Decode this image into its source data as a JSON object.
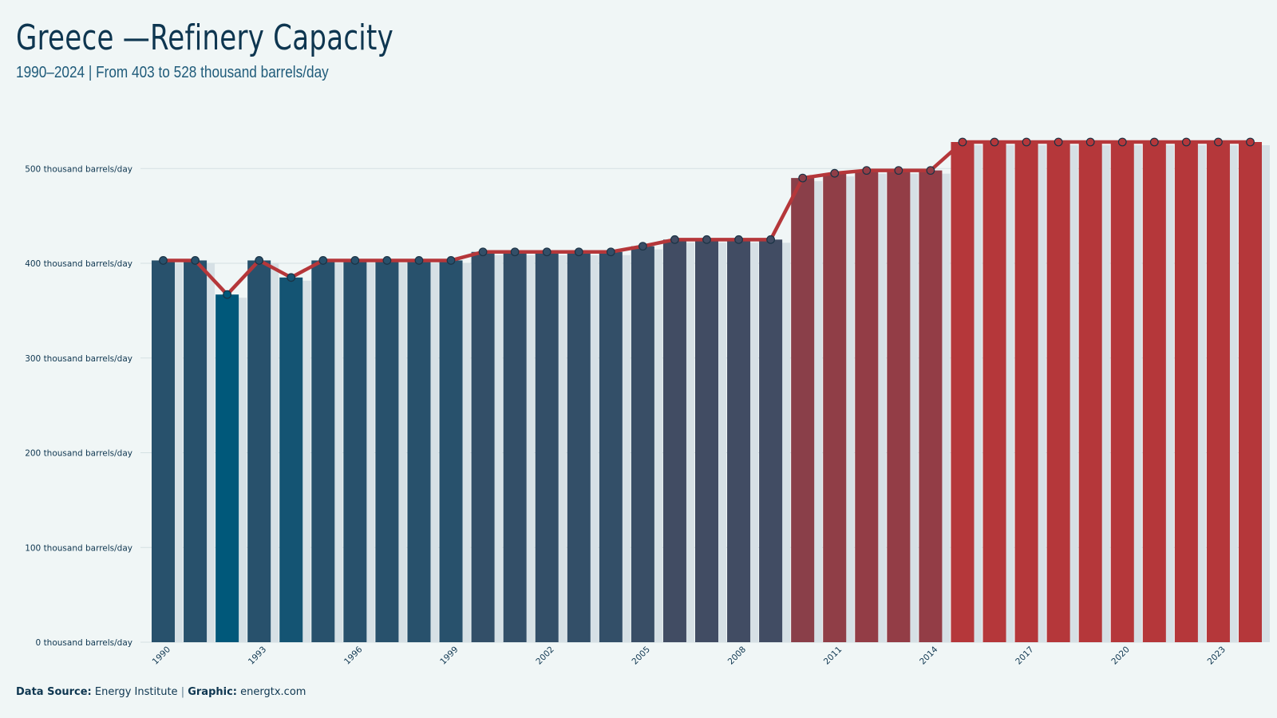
{
  "title": "Greece —Refinery Capacity",
  "subtitle": "1990–2024 | From 403 to 528 thousand barrels/day",
  "footer": {
    "source_label": "Data Source:",
    "source_value": "Energy Institute",
    "separator": "|",
    "graphic_label": "Graphic:",
    "graphic_value": "energtx.com"
  },
  "chart_data": {
    "type": "bar",
    "overlay": "line-with-markers",
    "x": [
      1990,
      1991,
      1992,
      1993,
      1994,
      1995,
      1996,
      1997,
      1998,
      1999,
      2000,
      2001,
      2002,
      2003,
      2004,
      2005,
      2006,
      2007,
      2008,
      2009,
      2010,
      2011,
      2012,
      2013,
      2014,
      2015,
      2016,
      2017,
      2018,
      2019,
      2020,
      2021,
      2022,
      2023,
      2024
    ],
    "values": [
      403,
      403,
      367,
      403,
      385,
      403,
      403,
      403,
      403,
      403,
      412,
      412,
      412,
      412,
      412,
      418,
      425,
      425,
      425,
      425,
      490,
      495,
      498,
      498,
      498,
      528,
      528,
      528,
      528,
      528,
      528,
      528,
      528,
      528,
      528
    ],
    "unit": "thousand barrels/day",
    "xticks": [
      1990,
      1993,
      1996,
      1999,
      2002,
      2005,
      2008,
      2011,
      2014,
      2017,
      2020,
      2023
    ],
    "yticks": [
      0,
      100,
      200,
      300,
      400,
      500
    ],
    "ytick_labels": [
      "0 thousand barrels/day",
      "100 thousand barrels/day",
      "200 thousand barrels/day",
      "300 thousand barrels/day",
      "400 thousand barrels/day",
      "500 thousand barrels/day"
    ],
    "ylim": [
      0,
      560
    ],
    "grid": "horizontal",
    "colors": {
      "line": "#b5373a",
      "marker_stroke": "#1b3345",
      "low": "#00587a",
      "high": "#b5373a",
      "shadow": "#d6e0e5",
      "grid": "#d4e0e2"
    }
  }
}
